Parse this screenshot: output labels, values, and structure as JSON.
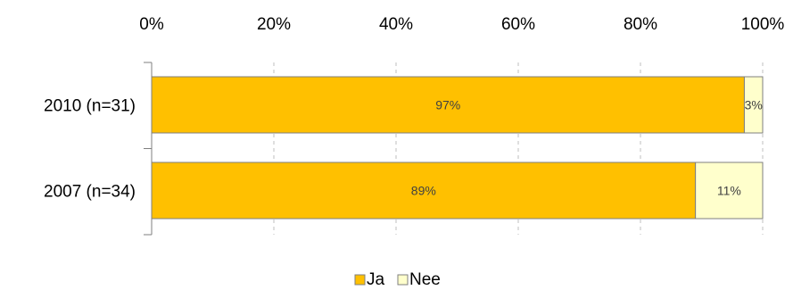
{
  "chart_data": {
    "type": "bar",
    "orientation": "horizontal",
    "stacked": "percent",
    "categories": [
      "2010 (n=31)",
      "2007 (n=34)"
    ],
    "series": [
      {
        "name": "Ja",
        "values": [
          97,
          89
        ],
        "labels": [
          "97%",
          "89%"
        ],
        "color": "#FFC000"
      },
      {
        "name": "Nee",
        "values": [
          3,
          11
        ],
        "labels": [
          "3%",
          "11%"
        ],
        "color": "#FFFFCC"
      }
    ],
    "xlim": [
      0,
      100
    ],
    "x_ticks": [
      "0%",
      "20%",
      "40%",
      "60%",
      "80%",
      "100%"
    ],
    "x_axis_position": "top",
    "grid": true,
    "legend_position": "bottom"
  }
}
